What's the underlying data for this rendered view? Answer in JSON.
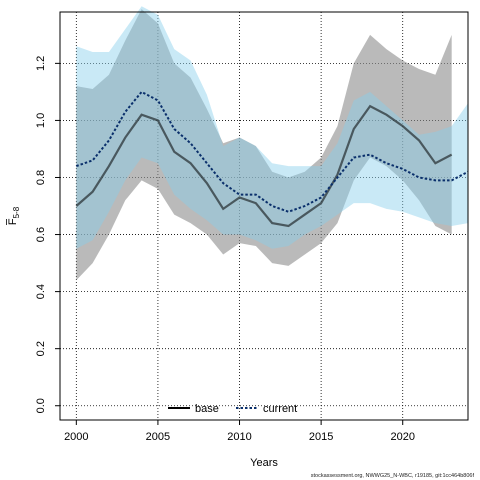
{
  "chart_data": {
    "type": "line",
    "xlabel": "Years",
    "ylabel": "F",
    "ylabel_subscript": "5-8",
    "xlim": [
      1999,
      2024
    ],
    "ylim": [
      -0.05,
      1.38
    ],
    "xticks": [
      2000,
      2005,
      2010,
      2015,
      2020
    ],
    "yticks": [
      0.0,
      0.2,
      0.4,
      0.6,
      0.8,
      1.0,
      1.2
    ],
    "ytick_labels": [
      "0.0",
      "0.2",
      "0.4",
      "0.6",
      "0.8",
      "1.0",
      "1.2"
    ],
    "grid": true,
    "legend_position": "bottom-center",
    "series": [
      {
        "name": "base",
        "color": "#000000",
        "band_color": "#8c8c8c",
        "x": [
          2000,
          2001,
          2002,
          2003,
          2004,
          2005,
          2006,
          2007,
          2008,
          2009,
          2010,
          2011,
          2012,
          2013,
          2014,
          2015,
          2016,
          2017,
          2018,
          2019,
          2020,
          2021,
          2022,
          2023
        ],
        "values": [
          0.7,
          0.75,
          0.84,
          0.94,
          1.02,
          1.0,
          0.89,
          0.85,
          0.78,
          0.69,
          0.73,
          0.71,
          0.64,
          0.63,
          0.67,
          0.71,
          0.81,
          0.97,
          1.05,
          1.02,
          0.98,
          0.93,
          0.85,
          0.88
        ],
        "lower": [
          0.44,
          0.5,
          0.6,
          0.72,
          0.79,
          0.76,
          0.67,
          0.64,
          0.6,
          0.53,
          0.57,
          0.56,
          0.5,
          0.49,
          0.53,
          0.57,
          0.64,
          0.79,
          0.87,
          0.84,
          0.79,
          0.72,
          0.63,
          0.6
        ],
        "upper": [
          1.12,
          1.11,
          1.16,
          1.28,
          1.39,
          1.34,
          1.2,
          1.15,
          1.04,
          0.92,
          0.94,
          0.91,
          0.82,
          0.8,
          0.82,
          0.87,
          0.98,
          1.2,
          1.3,
          1.25,
          1.21,
          1.18,
          1.16,
          1.3
        ]
      },
      {
        "name": "current",
        "color": "#0a2f6b",
        "band_color": "#87ceeb",
        "x": [
          2000,
          2001,
          2002,
          2003,
          2004,
          2005,
          2006,
          2007,
          2008,
          2009,
          2010,
          2011,
          2012,
          2013,
          2014,
          2015,
          2016,
          2017,
          2018,
          2019,
          2020,
          2021,
          2022,
          2023,
          2024
        ],
        "values": [
          0.84,
          0.86,
          0.93,
          1.03,
          1.1,
          1.07,
          0.97,
          0.92,
          0.85,
          0.78,
          0.74,
          0.74,
          0.7,
          0.68,
          0.7,
          0.73,
          0.8,
          0.87,
          0.88,
          0.85,
          0.83,
          0.8,
          0.79,
          0.79,
          0.82
        ],
        "lower": [
          0.55,
          0.58,
          0.68,
          0.79,
          0.87,
          0.85,
          0.74,
          0.69,
          0.65,
          0.6,
          0.6,
          0.58,
          0.55,
          0.56,
          0.6,
          0.63,
          0.67,
          0.71,
          0.71,
          0.69,
          0.68,
          0.66,
          0.64,
          0.63,
          0.64
        ],
        "upper": [
          1.26,
          1.24,
          1.24,
          1.32,
          1.4,
          1.37,
          1.25,
          1.21,
          1.09,
          0.91,
          0.94,
          0.91,
          0.85,
          0.84,
          0.84,
          0.84,
          0.92,
          1.07,
          1.1,
          1.05,
          1.0,
          0.95,
          0.96,
          0.98,
          1.06
        ]
      }
    ]
  },
  "legend": {
    "items": [
      {
        "label": "base",
        "color": "#000000",
        "dash": "solid"
      },
      {
        "label": "current",
        "color": "#0a2f6b",
        "dash": "dotted"
      }
    ]
  },
  "footer": "stockassessment.org, NWWG25_N-WBC, r19185, git:1cc464b806f"
}
